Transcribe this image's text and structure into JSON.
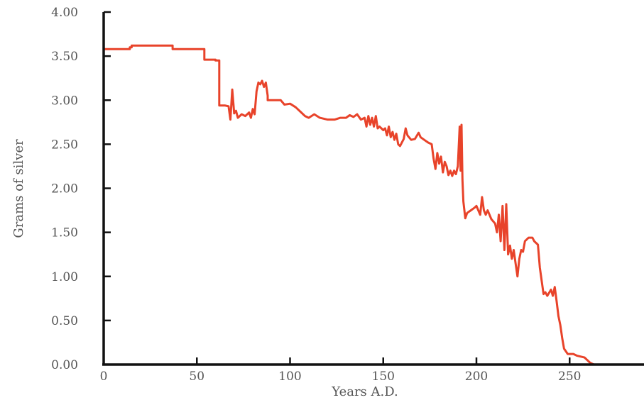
{
  "chart_data": {
    "type": "line",
    "title": "",
    "xlabel": "Years A.D.",
    "ylabel": "Grams of silver",
    "xlim": [
      0,
      290
    ],
    "ylim": [
      0,
      4.0
    ],
    "x_ticks": [
      0,
      50,
      100,
      150,
      200,
      250
    ],
    "x_tick_labels": [
      "0",
      "50",
      "100",
      "150",
      "200",
      "250"
    ],
    "y_ticks": [
      0,
      0.5,
      1.0,
      1.5,
      2.0,
      2.5,
      3.0,
      3.5,
      4.0
    ],
    "y_tick_labels": [
      "0.00",
      "0.50",
      "1.00",
      "1.50",
      "2.00",
      "2.50",
      "3.00",
      "3.50",
      "4.00"
    ],
    "grid": false,
    "line_color": "#e8432a",
    "axis_color": "#111111",
    "series": [
      {
        "points": [
          [
            0,
            3.58
          ],
          [
            14,
            3.58
          ],
          [
            14,
            3.6
          ],
          [
            15,
            3.6
          ],
          [
            15,
            3.62
          ],
          [
            37,
            3.62
          ],
          [
            37,
            3.58
          ],
          [
            54,
            3.58
          ],
          [
            54,
            3.46
          ],
          [
            60,
            3.46
          ],
          [
            60,
            3.45
          ],
          [
            62,
            3.45
          ],
          [
            62,
            2.94
          ],
          [
            65,
            2.94
          ],
          [
            67,
            2.93
          ],
          [
            68,
            2.78
          ],
          [
            69,
            3.12
          ],
          [
            70,
            2.85
          ],
          [
            71,
            2.88
          ],
          [
            72,
            2.8
          ],
          [
            74,
            2.84
          ],
          [
            76,
            2.82
          ],
          [
            78,
            2.86
          ],
          [
            79,
            2.8
          ],
          [
            80,
            2.9
          ],
          [
            81,
            2.84
          ],
          [
            82,
            3.1
          ],
          [
            83,
            3.2
          ],
          [
            84,
            3.18
          ],
          [
            85,
            3.22
          ],
          [
            86,
            3.15
          ],
          [
            87,
            3.2
          ],
          [
            88,
            3.05
          ],
          [
            88,
            3.0
          ],
          [
            95,
            3.0
          ],
          [
            97,
            2.95
          ],
          [
            100,
            2.96
          ],
          [
            103,
            2.92
          ],
          [
            106,
            2.86
          ],
          [
            108,
            2.82
          ],
          [
            110,
            2.8
          ],
          [
            113,
            2.84
          ],
          [
            116,
            2.8
          ],
          [
            120,
            2.78
          ],
          [
            124,
            2.78
          ],
          [
            127,
            2.8
          ],
          [
            130,
            2.8
          ],
          [
            132,
            2.83
          ],
          [
            134,
            2.81
          ],
          [
            136,
            2.84
          ],
          [
            138,
            2.78
          ],
          [
            140,
            2.8
          ],
          [
            141,
            2.7
          ],
          [
            142,
            2.82
          ],
          [
            143,
            2.72
          ],
          [
            144,
            2.8
          ],
          [
            145,
            2.7
          ],
          [
            146,
            2.82
          ],
          [
            147,
            2.68
          ],
          [
            148,
            2.7
          ],
          [
            150,
            2.66
          ],
          [
            151,
            2.68
          ],
          [
            152,
            2.6
          ],
          [
            153,
            2.7
          ],
          [
            154,
            2.58
          ],
          [
            155,
            2.64
          ],
          [
            156,
            2.55
          ],
          [
            157,
            2.62
          ],
          [
            158,
            2.5
          ],
          [
            159,
            2.48
          ],
          [
            160,
            2.52
          ],
          [
            161,
            2.56
          ],
          [
            162,
            2.68
          ],
          [
            163,
            2.6
          ],
          [
            165,
            2.55
          ],
          [
            167,
            2.56
          ],
          [
            169,
            2.63
          ],
          [
            170,
            2.58
          ],
          [
            172,
            2.55
          ],
          [
            174,
            2.52
          ],
          [
            176,
            2.5
          ],
          [
            177,
            2.34
          ],
          [
            178,
            2.22
          ],
          [
            179,
            2.4
          ],
          [
            180,
            2.28
          ],
          [
            181,
            2.36
          ],
          [
            182,
            2.18
          ],
          [
            183,
            2.3
          ],
          [
            184,
            2.25
          ],
          [
            185,
            2.15
          ],
          [
            186,
            2.2
          ],
          [
            187,
            2.14
          ],
          [
            188,
            2.2
          ],
          [
            189,
            2.16
          ],
          [
            190,
            2.25
          ],
          [
            191,
            2.7
          ],
          [
            191.5,
            2.2
          ],
          [
            192,
            2.72
          ],
          [
            192.5,
            2.1
          ],
          [
            193,
            1.85
          ],
          [
            194,
            1.66
          ],
          [
            195,
            1.72
          ],
          [
            197,
            1.75
          ],
          [
            199,
            1.78
          ],
          [
            200,
            1.8
          ],
          [
            202,
            1.7
          ],
          [
            203,
            1.9
          ],
          [
            204,
            1.75
          ],
          [
            205,
            1.7
          ],
          [
            206,
            1.75
          ],
          [
            208,
            1.65
          ],
          [
            210,
            1.6
          ],
          [
            211,
            1.5
          ],
          [
            212,
            1.7
          ],
          [
            213,
            1.4
          ],
          [
            214,
            1.8
          ],
          [
            215,
            1.3
          ],
          [
            216,
            1.82
          ],
          [
            217,
            1.25
          ],
          [
            218,
            1.35
          ],
          [
            219,
            1.2
          ],
          [
            220,
            1.3
          ],
          [
            221,
            1.15
          ],
          [
            222,
            1.0
          ],
          [
            223,
            1.2
          ],
          [
            224,
            1.3
          ],
          [
            225,
            1.28
          ],
          [
            226,
            1.4
          ],
          [
            228,
            1.44
          ],
          [
            230,
            1.44
          ],
          [
            231,
            1.4
          ],
          [
            233,
            1.36
          ],
          [
            234,
            1.1
          ],
          [
            235,
            0.95
          ],
          [
            236,
            0.8
          ],
          [
            237,
            0.82
          ],
          [
            238,
            0.78
          ],
          [
            240,
            0.85
          ],
          [
            241,
            0.78
          ],
          [
            242,
            0.88
          ],
          [
            243,
            0.72
          ],
          [
            244,
            0.55
          ],
          [
            245,
            0.45
          ],
          [
            246,
            0.3
          ],
          [
            247,
            0.18
          ],
          [
            249,
            0.12
          ],
          [
            252,
            0.12
          ],
          [
            254,
            0.1
          ],
          [
            258,
            0.08
          ],
          [
            261,
            0.02
          ],
          [
            263,
            0.0
          ]
        ]
      }
    ]
  }
}
